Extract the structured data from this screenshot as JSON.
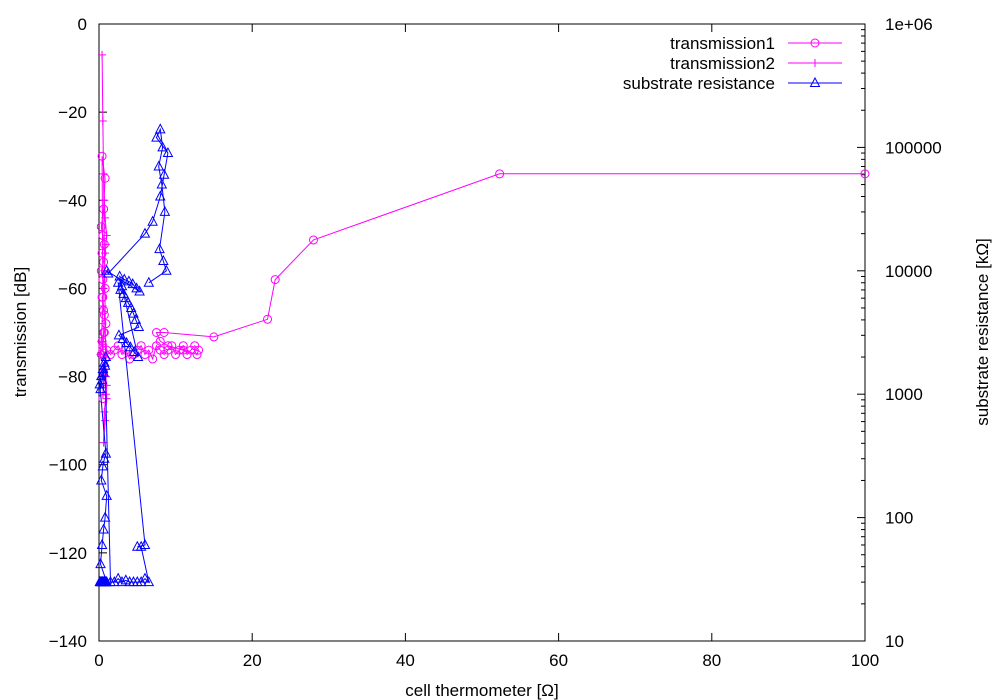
{
  "chart_data": {
    "type": "scatter",
    "title": "",
    "xlabel": "cell thermometer [Ω]",
    "ylabel": "transmission [dB]",
    "y2label": "substrate resistance [kΩ]",
    "xlim": [
      0,
      100
    ],
    "ylim": [
      -140,
      0
    ],
    "y2lim": [
      10,
      1000000
    ],
    "y2scale": "log",
    "grid": false,
    "legend_position": "top-right",
    "xticks": [
      0,
      20,
      40,
      60,
      80,
      100
    ],
    "xtick_labels": [
      "0",
      "20",
      "40",
      "60",
      "80",
      "100"
    ],
    "yticks": [
      0,
      -20,
      -40,
      -60,
      -80,
      -100,
      -120,
      -140
    ],
    "ytick_labels": [
      "0",
      "−20",
      "−40",
      "−60",
      "−80",
      "−100",
      "−120",
      "−140"
    ],
    "y2ticks": [
      10,
      100,
      1000,
      10000,
      100000,
      1000000
    ],
    "y2tick_labels": [
      "10",
      "100",
      "1000",
      "10000",
      "100000",
      "1e+06"
    ],
    "series": [
      {
        "name": "transmission1",
        "color": "#ff00ff",
        "marker": "circle",
        "axis": "y",
        "x": [
          0.3,
          0.5,
          0.7,
          0.9,
          0.6,
          0.4,
          0.8,
          0.5,
          0.3,
          0.6,
          0.4,
          0.7,
          0.5,
          0.3,
          0.6,
          0.8,
          0.4,
          0.5,
          0.7,
          0.6,
          0.4,
          0.5,
          0.8,
          0.6,
          0.5,
          1.0,
          1.5,
          2.0,
          2.5,
          3.0,
          3.5,
          4.0,
          4.5,
          5.0,
          5.5,
          6.0,
          6.5,
          7.0,
          7.5,
          8.0,
          8.5,
          9.0,
          9.5,
          10.0,
          10.5,
          11.0,
          11.5,
          12.0,
          12.5,
          13.0,
          12.8,
          11.0,
          9.0,
          8.0,
          7.5,
          8.5,
          15.0,
          22.0,
          23.0,
          28.0,
          52.3,
          100.0
        ],
        "y": [
          -75,
          -73,
          -70,
          -68,
          -65,
          -62,
          -60,
          -58,
          -56,
          -54,
          -52,
          -50,
          -48,
          -46,
          -42,
          -35,
          -30,
          -62,
          -66,
          -70,
          -72,
          -74,
          -76,
          -79,
          -85,
          -74,
          -75,
          -74,
          -73,
          -75,
          -74,
          -76,
          -75,
          -74,
          -73,
          -75,
          -74,
          -76,
          -73,
          -74,
          -75,
          -74,
          -73,
          -75,
          -74,
          -73,
          -75,
          -74,
          -73,
          -74,
          -75,
          -74,
          -73,
          -72,
          -70,
          -70,
          -71,
          -67,
          -58,
          -49,
          -34,
          -34
        ]
      },
      {
        "name": "transmission2",
        "color": "#ff00ff",
        "marker": "plus",
        "axis": "y",
        "x": [
          0.2,
          0.3,
          0.4,
          0.5,
          0.6,
          0.7,
          0.8,
          0.9,
          1.0,
          0.8,
          0.7,
          0.6,
          0.5,
          0.4,
          0.9,
          1.0,
          0.8,
          0.6,
          0.7,
          0.9,
          1.0
        ],
        "y": [
          -75,
          -72,
          -68,
          -64,
          -60,
          -56,
          -52,
          -50,
          -48,
          -44,
          -40,
          -34,
          -22,
          -7,
          -80,
          -85,
          -90,
          -95,
          -88,
          -84,
          -82
        ]
      },
      {
        "name": "substrate resistance",
        "color": "#0000ff",
        "marker": "triangle",
        "axis": "y2",
        "x": [
          0.1,
          0.2,
          0.3,
          0.4,
          0.5,
          0.6,
          0.7,
          0.8,
          0.9,
          1.0,
          0.2,
          0.4,
          0.6,
          0.8,
          1.0,
          0.3,
          0.5,
          0.7,
          0.9,
          0.1,
          0.3,
          0.5,
          0.7,
          0.9,
          0.2,
          0.4,
          0.6,
          0.8,
          1.5,
          2.0,
          2.5,
          3.0,
          3.5,
          4.0,
          4.5,
          5.0,
          5.5,
          6.0,
          6.5,
          5.5,
          5.0,
          6.0,
          2.5,
          3.0,
          2.8,
          3.2,
          3.5,
          3.8,
          4.2,
          4.5,
          4.8,
          5.2,
          2.6,
          3.1,
          3.6,
          4.1,
          4.6,
          5.1,
          2.7,
          3.3,
          3.9,
          4.4,
          4.9,
          5.3,
          1.0,
          1.2,
          6.0,
          7.0,
          8.0,
          8.5,
          9.0,
          7.5,
          8.0,
          8.3,
          7.8,
          8.2,
          8.6,
          7.9,
          8.4,
          8.8,
          6.5
        ],
        "y": [
          30,
          30,
          30,
          30,
          30,
          30,
          30,
          30,
          30,
          30,
          42,
          60,
          80,
          100,
          150,
          200,
          260,
          300,
          330,
          1200,
          1400,
          1600,
          1800,
          2000,
          1100,
          1300,
          1500,
          1700,
          30,
          30,
          32,
          30,
          31,
          30,
          30,
          30,
          30,
          32,
          30,
          58,
          58,
          60,
          8000,
          7500,
          7000,
          6500,
          6000,
          5500,
          5000,
          4500,
          4000,
          3500,
          3000,
          2800,
          2600,
          2400,
          2200,
          2000,
          9000,
          8500,
          8200,
          7800,
          7200,
          6800,
          10000,
          9500,
          20000,
          25000,
          40000,
          60000,
          90000,
          120000,
          140000,
          100000,
          70000,
          50000,
          30000,
          15000,
          12000,
          10000,
          8000
        ]
      }
    ]
  }
}
